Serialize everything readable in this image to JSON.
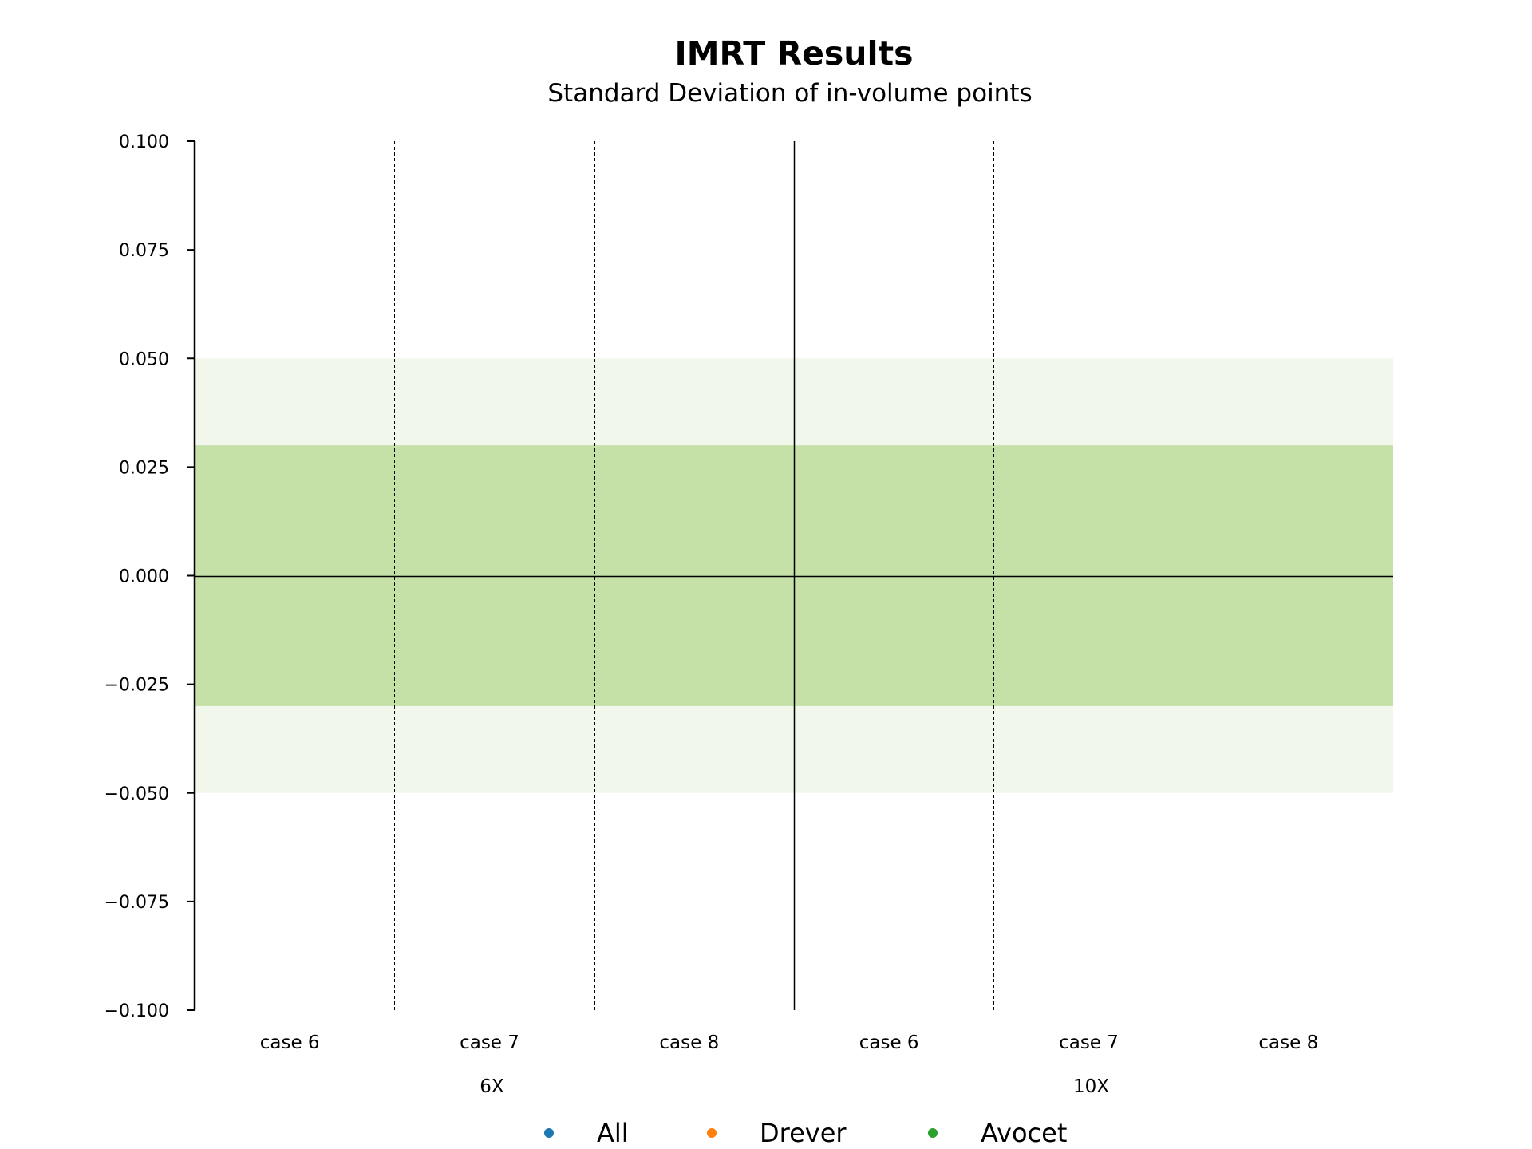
{
  "chart_data": {
    "type": "scatter",
    "title": "IMRT Results",
    "subtitle": "Standard Deviation of in-volume points",
    "xlabel": "",
    "ylabel": "",
    "ylim": [
      -0.1,
      0.1
    ],
    "yticks": [
      0.1,
      0.075,
      0.05,
      0.025,
      0.0,
      -0.025,
      -0.05,
      -0.075,
      -0.1
    ],
    "ytick_labels": [
      "0.100",
      "0.075",
      "0.050",
      "0.025",
      "0.000",
      "−0.025",
      "−0.050",
      "−0.075",
      "−0.100"
    ],
    "categories": [
      "case 6",
      "case 7",
      "case 8",
      "case 6",
      "case 7",
      "case 8"
    ],
    "groups": [
      {
        "label": "6X",
        "categories": [
          "case 6",
          "case 7",
          "case 8"
        ]
      },
      {
        "label": "10X",
        "categories": [
          "case 6",
          "case 7",
          "case 8"
        ]
      }
    ],
    "bands": [
      {
        "from": -0.05,
        "to": 0.05,
        "color": "#f1f7ea"
      },
      {
        "from": -0.03,
        "to": 0.03,
        "color": "#c5e1a7"
      }
    ],
    "reference_line": 0.0,
    "series": [
      {
        "name": "All",
        "color": "#1f77b4",
        "values": []
      },
      {
        "name": "Drever",
        "color": "#ff7f0e",
        "values": []
      },
      {
        "name": "Avocet",
        "color": "#2ca02c",
        "values": []
      }
    ],
    "legend_position": "bottom-center",
    "grid": false
  }
}
